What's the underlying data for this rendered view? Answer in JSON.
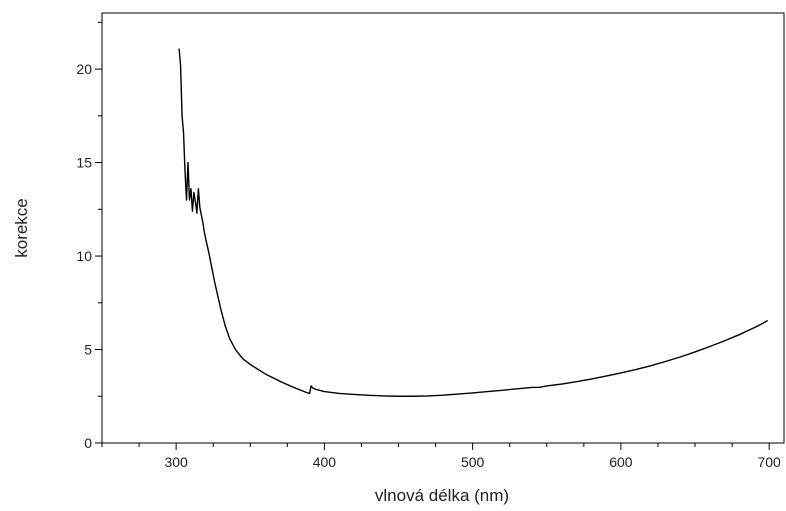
{
  "chart_data": {
    "type": "line",
    "title": "",
    "xlabel": "vlnová délka (nm)",
    "ylabel": "korekce",
    "xlim": [
      250,
      710
    ],
    "ylim": [
      0,
      23
    ],
    "xticks": [
      300,
      400,
      500,
      600,
      700
    ],
    "xtick_labels": [
      "300",
      "400",
      "500",
      "600",
      "700"
    ],
    "yticks": [
      0,
      5,
      10,
      15,
      20
    ],
    "ytick_labels": [
      "0",
      "5",
      "10",
      "15",
      "20"
    ],
    "grid": false,
    "legend": "none",
    "line_color": "#000000",
    "series": [
      {
        "x": [
          302,
          303,
          304,
          305,
          306,
          307,
          308,
          309,
          310,
          311,
          312,
          313,
          314,
          315,
          316,
          317,
          318,
          319,
          320,
          322,
          324,
          326,
          328,
          330,
          333,
          336,
          340,
          345,
          350,
          360,
          370,
          380,
          388,
          390,
          391,
          392,
          395,
          400,
          410,
          420,
          430,
          440,
          450,
          460,
          470,
          480,
          490,
          500,
          510,
          520,
          530,
          540,
          545,
          550,
          560,
          570,
          580,
          590,
          600,
          610,
          620,
          630,
          640,
          650,
          660,
          670,
          680,
          690,
          695,
          699
        ],
        "y": [
          21.1,
          20.2,
          17.5,
          16.6,
          14.5,
          13.0,
          15.0,
          13.0,
          13.6,
          12.4,
          13.4,
          12.9,
          12.3,
          13.6,
          12.6,
          12.2,
          11.8,
          11.3,
          10.9,
          10.2,
          9.4,
          8.6,
          7.9,
          7.2,
          6.3,
          5.6,
          5.0,
          4.5,
          4.2,
          3.7,
          3.3,
          2.95,
          2.7,
          2.65,
          3.05,
          2.95,
          2.85,
          2.75,
          2.65,
          2.6,
          2.55,
          2.52,
          2.5,
          2.5,
          2.52,
          2.56,
          2.62,
          2.68,
          2.75,
          2.82,
          2.9,
          2.97,
          2.98,
          3.05,
          3.15,
          3.28,
          3.42,
          3.58,
          3.75,
          3.93,
          4.13,
          4.36,
          4.6,
          4.87,
          5.16,
          5.47,
          5.8,
          6.17,
          6.37,
          6.55
        ]
      }
    ]
  }
}
